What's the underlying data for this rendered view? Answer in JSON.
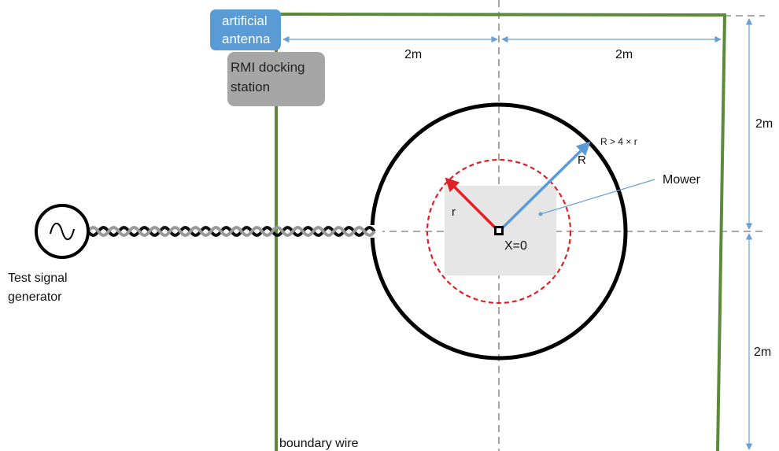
{
  "colors": {
    "boundary": "#5a8a3a",
    "dimension": "#6a9fd4",
    "circle": "#000000",
    "inner_circle": "#e31f26",
    "r_arrow": "#e31f26",
    "R_arrow": "#5b9bd5",
    "mower_area": "#e6e6e6",
    "antenna_box": "#5b9bd5",
    "docking_box": "#a6a6a6",
    "twisted_wire_a": "#111111",
    "twisted_wire_b": "#9a9a9a"
  },
  "labels": {
    "antenna": [
      "artificial",
      "antenna"
    ],
    "docking": [
      "RMI docking",
      "station"
    ],
    "dim_top_left": "2m",
    "dim_top_right": "2m",
    "dim_right_upper": "2m",
    "dim_right_lower": "2m",
    "R_condition": "R > 4 × r",
    "R": "R",
    "r": "r",
    "mower": "Mower",
    "origin": "X=0",
    "generator": [
      "Test signal",
      "generator"
    ],
    "boundary": "boundary wire"
  },
  "icons": {
    "generator": "sine-wave-icon",
    "origin": "crosshair-marker-icon"
  }
}
